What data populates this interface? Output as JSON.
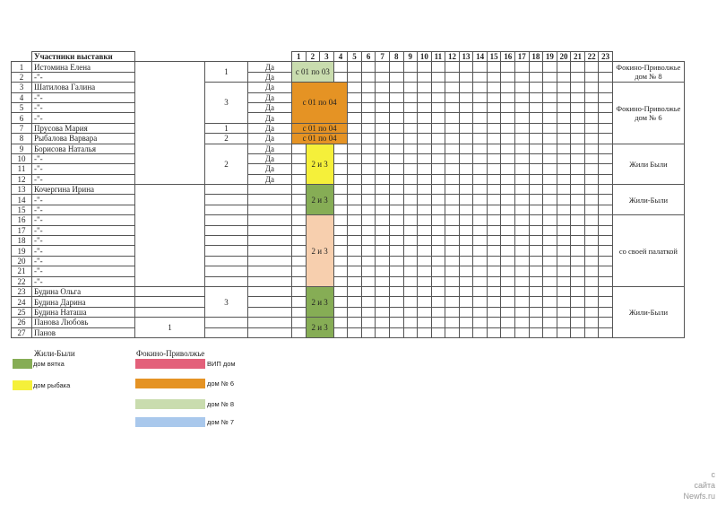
{
  "header": {
    "title": "Участники выставки",
    "days": [
      "1",
      "2",
      "3",
      "4",
      "5",
      "6",
      "7",
      "8",
      "9",
      "10",
      "11",
      "12",
      "13",
      "14",
      "15",
      "16",
      "17",
      "18",
      "19",
      "20",
      "21",
      "22",
      "23"
    ]
  },
  "rows": [
    {
      "n": "1",
      "name": "Истомина Елена",
      "da": "Да"
    },
    {
      "n": "2",
      "name": "-\"-",
      "da": "Да"
    },
    {
      "n": "3",
      "name": "Шатилова Галина",
      "da": "Да"
    },
    {
      "n": "4",
      "name": "-\"-",
      "da": "Да"
    },
    {
      "n": "5",
      "name": "-\"-",
      "da": "Да"
    },
    {
      "n": "6",
      "name": "-\"-",
      "da": "Да"
    },
    {
      "n": "7",
      "name": "Прусова Мария",
      "da": "Да"
    },
    {
      "n": "8",
      "name": "Рыбалова Варвара",
      "da": "Да"
    },
    {
      "n": "9",
      "name": "Борисова Наталья",
      "da": "Да"
    },
    {
      "n": "10",
      "name": "-\"-",
      "da": "Да"
    },
    {
      "n": "11",
      "name": "-\"-",
      "da": "Да"
    },
    {
      "n": "12",
      "name": "-\"-",
      "da": "Да"
    },
    {
      "n": "13",
      "name": "Кочергина Ирина",
      "da": ""
    },
    {
      "n": "14",
      "name": "-\"-",
      "da": ""
    },
    {
      "n": "15",
      "name": "-\"-",
      "da": ""
    },
    {
      "n": "16",
      "name": "-\"-",
      "da": ""
    },
    {
      "n": "17",
      "name": "-\"-",
      "da": ""
    },
    {
      "n": "18",
      "name": "-\"-",
      "da": ""
    },
    {
      "n": "19",
      "name": "-\"-",
      "da": ""
    },
    {
      "n": "20",
      "name": "-\"-",
      "da": ""
    },
    {
      "n": "21",
      "name": "-\"-",
      "da": ""
    },
    {
      "n": "22",
      "name": "-\"-",
      "da": ""
    },
    {
      "n": "23",
      "name": "Будина Ольга",
      "da": ""
    },
    {
      "n": "24",
      "name": "Будина Дарина",
      "da": ""
    },
    {
      "n": "25",
      "name": "Будина Наташа",
      "da": ""
    },
    {
      "n": "26",
      "name": "Панова Любовь",
      "da": ""
    },
    {
      "n": "27",
      "name": "Панов",
      "da": ""
    }
  ],
  "col3_groups": [
    {
      "start": 1,
      "span": 12,
      "text": ""
    },
    {
      "start": 13,
      "span": 10,
      "text": ""
    },
    {
      "start": 23,
      "span": 1,
      "text": ""
    },
    {
      "start": 24,
      "span": 1,
      "text": ""
    },
    {
      "start": 25,
      "span": 1,
      "text": ""
    },
    {
      "start": 26,
      "span": 2,
      "text": "1"
    }
  ],
  "col4_groups": [
    {
      "start": 1,
      "span": 2,
      "text": "1"
    },
    {
      "start": 3,
      "span": 4,
      "text": "3"
    },
    {
      "start": 7,
      "span": 1,
      "text": "1"
    },
    {
      "start": 8,
      "span": 1,
      "text": "2"
    },
    {
      "start": 9,
      "span": 4,
      "text": "2"
    },
    {
      "start": 13,
      "span": 1,
      "text": ""
    },
    {
      "start": 14,
      "span": 1,
      "text": ""
    },
    {
      "start": 15,
      "span": 1,
      "text": ""
    },
    {
      "start": 16,
      "span": 1,
      "text": ""
    },
    {
      "start": 17,
      "span": 1,
      "text": ""
    },
    {
      "start": 18,
      "span": 1,
      "text": ""
    },
    {
      "start": 19,
      "span": 1,
      "text": ""
    },
    {
      "start": 20,
      "span": 1,
      "text": ""
    },
    {
      "start": 21,
      "span": 1,
      "text": ""
    },
    {
      "start": 22,
      "span": 1,
      "text": ""
    },
    {
      "start": 23,
      "span": 3,
      "text": "3"
    },
    {
      "start": 26,
      "span": 1,
      "text": ""
    },
    {
      "start": 27,
      "span": 1,
      "text": ""
    }
  ],
  "blocks": [
    {
      "start": 1,
      "span": 2,
      "day": 1,
      "days": 3,
      "text": "с 01 по 03",
      "color": "#c9dcae"
    },
    {
      "start": 3,
      "span": 4,
      "day": 1,
      "days": 4,
      "text": "с 01 по 04",
      "color": "#e59324"
    },
    {
      "start": 7,
      "span": 1,
      "day": 1,
      "days": 4,
      "text": "с 01 по 04",
      "color": "#e59324"
    },
    {
      "start": 8,
      "span": 1,
      "day": 1,
      "days": 4,
      "text": "с 01 по 04",
      "color": "#e59324"
    },
    {
      "start": 9,
      "span": 4,
      "day": 2,
      "days": 2,
      "text": "2 и 3",
      "color": "#f5f03a"
    },
    {
      "start": 13,
      "span": 3,
      "day": 2,
      "days": 2,
      "text": "2 и 3",
      "color": "#86ad55"
    },
    {
      "start": 16,
      "span": 7,
      "day": 2,
      "days": 2,
      "text": "2 и 3",
      "color": "#f7cfae"
    },
    {
      "start": 23,
      "span": 3,
      "day": 2,
      "days": 2,
      "text": "2 и 3",
      "color": "#86ad55"
    },
    {
      "start": 26,
      "span": 2,
      "day": 2,
      "days": 2,
      "text": "2 и 3",
      "color": "#86ad55"
    }
  ],
  "notes": [
    {
      "start": 1,
      "span": 2,
      "text": "Фокино-Приволжье дом № 8"
    },
    {
      "start": 3,
      "span": 6,
      "text": "Фокино-Приволжье дом № 6"
    },
    {
      "start": 9,
      "span": 4,
      "text": "Жили Были"
    },
    {
      "start": 13,
      "span": 3,
      "text": "Жили-Были"
    },
    {
      "start": 16,
      "span": 7,
      "text": "со своей палаткой"
    },
    {
      "start": 23,
      "span": 5,
      "text": "Жили-Были"
    }
  ],
  "legend": {
    "left": {
      "title": "Жили-Были",
      "items": [
        {
          "label": "дом вятка",
          "color": "#86ad55"
        },
        {
          "label": "дом рыбака",
          "color": "#f5f03a"
        }
      ]
    },
    "right": {
      "title": "Фокино-Приволжье",
      "items": [
        {
          "label": "ВИП дом",
          "color": "#e3607a"
        },
        {
          "label": "дом № 6",
          "color": "#e59324"
        },
        {
          "label": "дом № 8",
          "color": "#c9dcae"
        },
        {
          "label": "дом № 7",
          "color": "#a9c8ec"
        }
      ]
    }
  },
  "watermark": {
    "line1": "с",
    "line2": "сайта",
    "line3": "Newfs.ru"
  }
}
